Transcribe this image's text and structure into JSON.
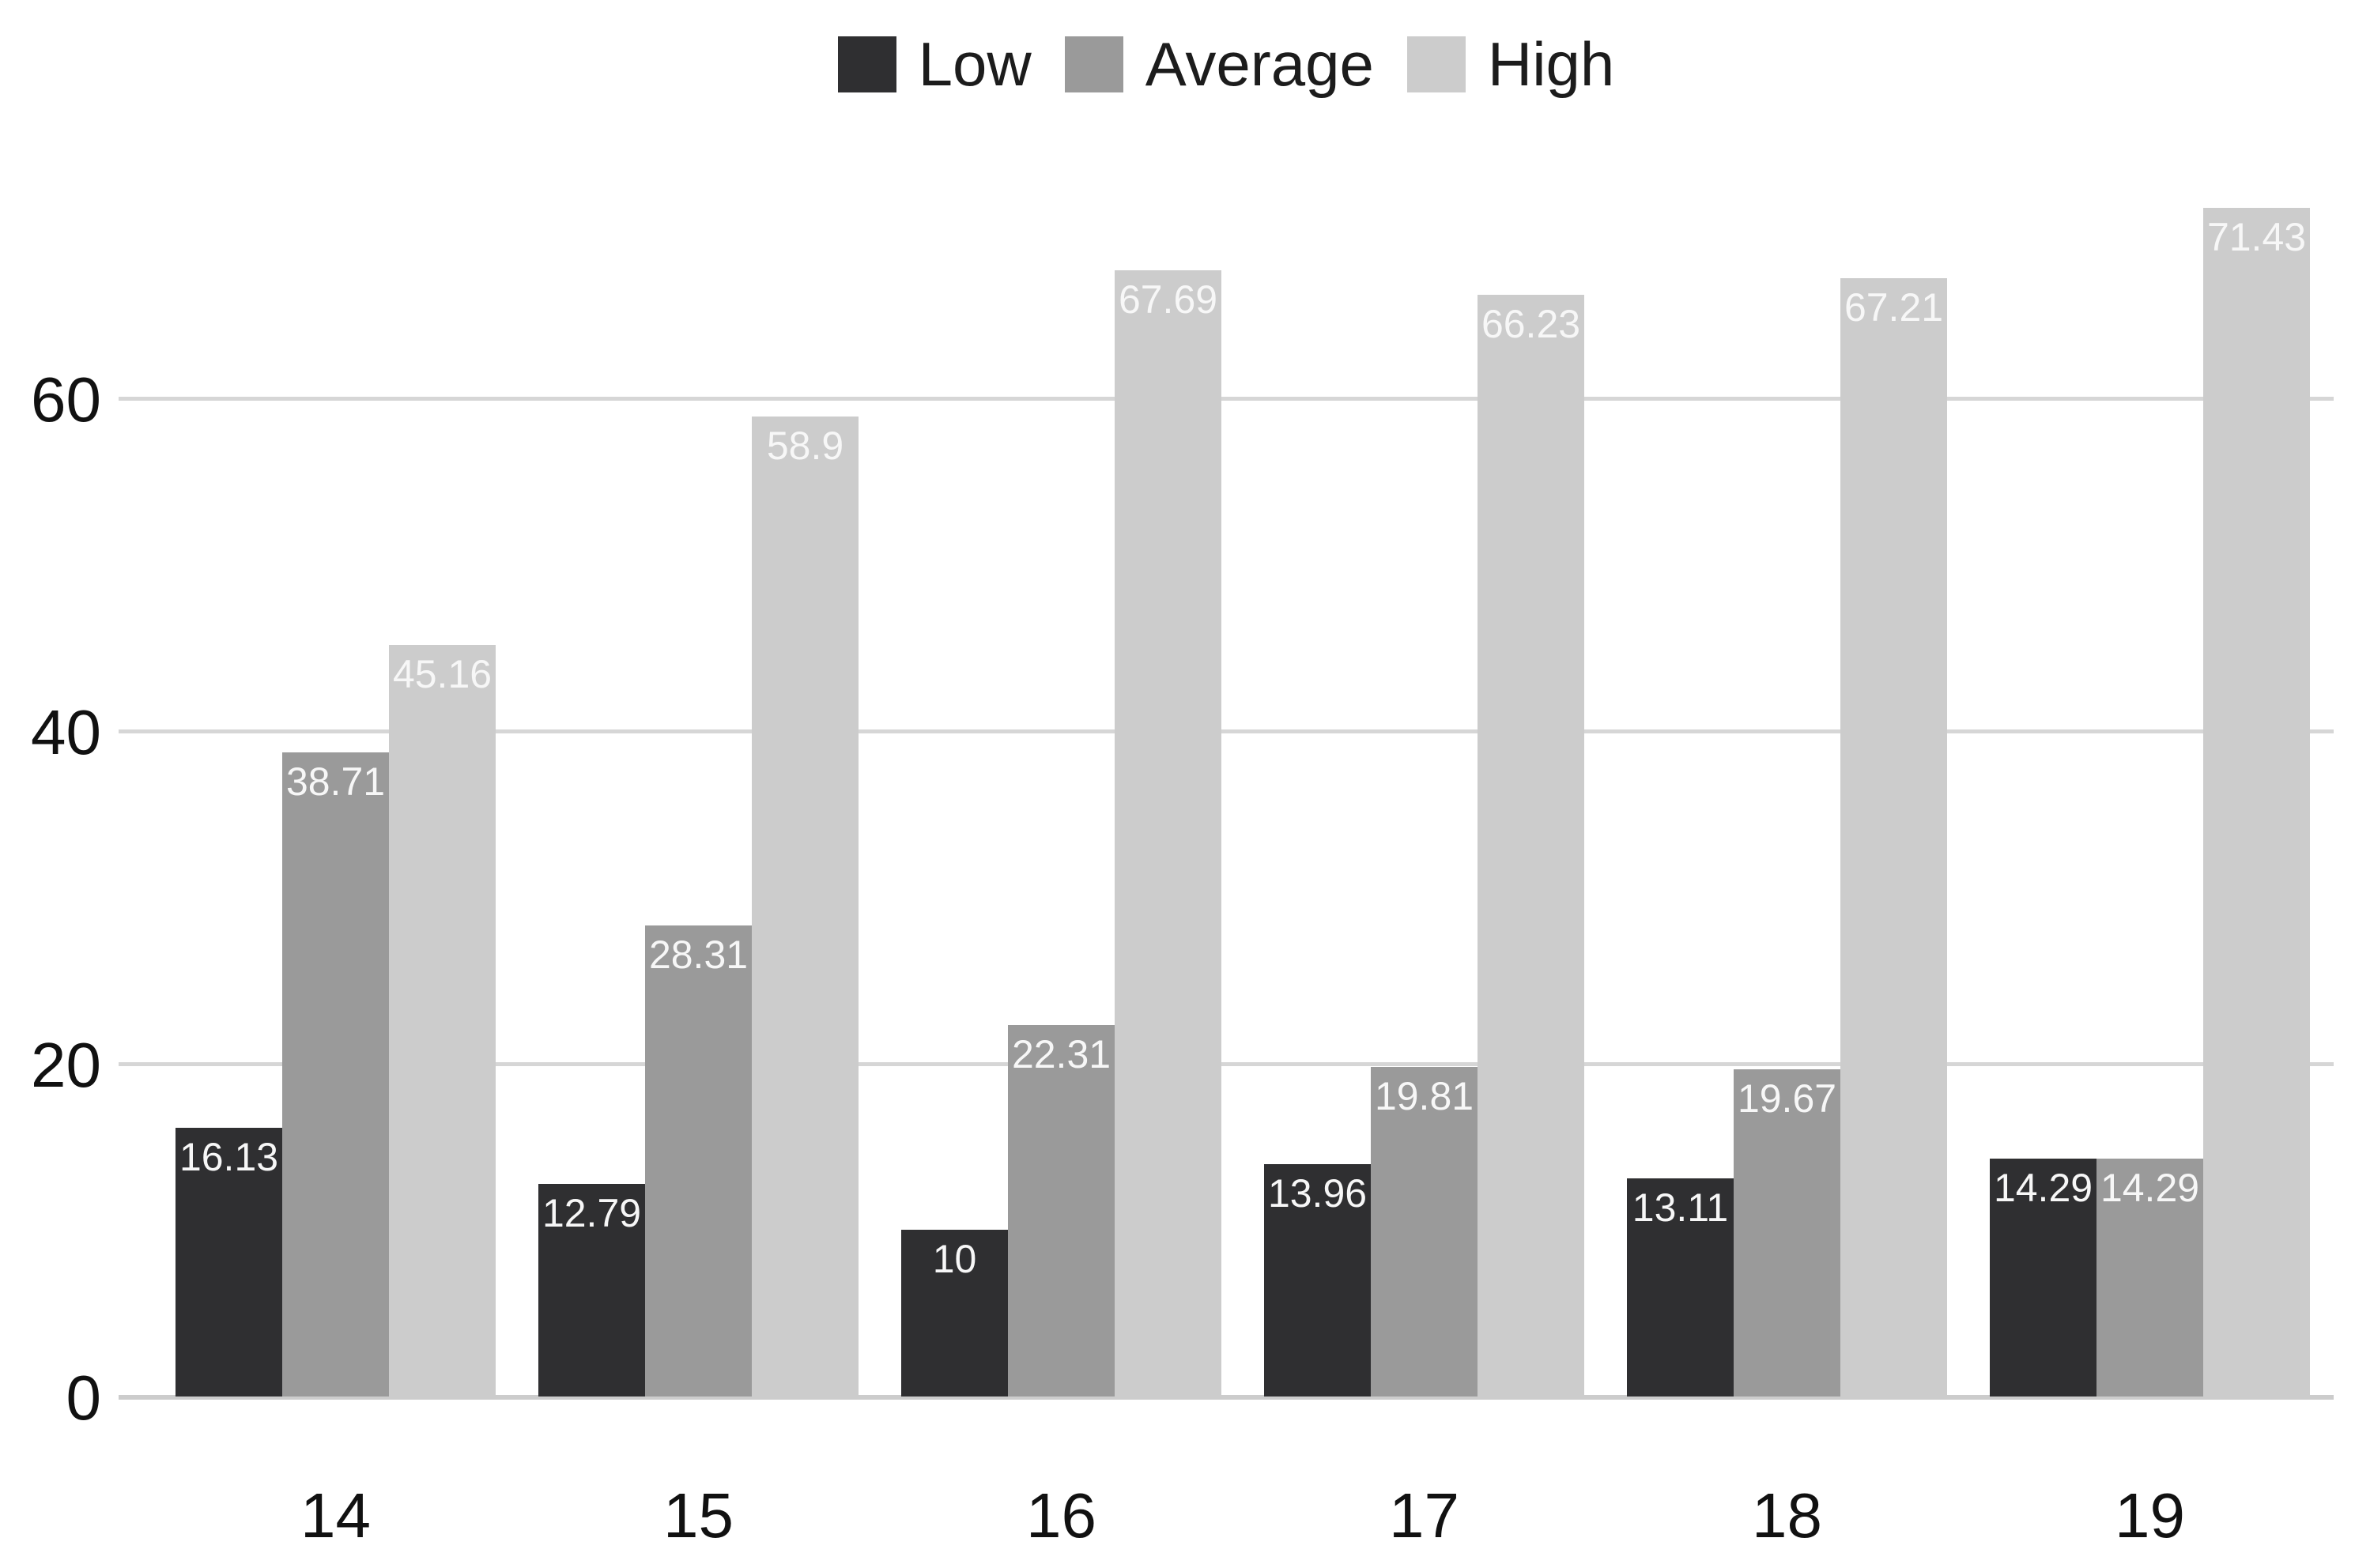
{
  "chart_data": {
    "type": "bar",
    "title": "",
    "categories": [
      "14",
      "15",
      "16",
      "17",
      "18",
      "19"
    ],
    "series": [
      {
        "name": "Low",
        "color": "#2f2f31",
        "values": [
          16.13,
          12.79,
          10,
          13.96,
          13.11,
          14.29
        ]
      },
      {
        "name": "Average",
        "color": "#9a9a9a",
        "values": [
          38.71,
          28.31,
          22.31,
          19.81,
          19.67,
          14.29
        ]
      },
      {
        "name": "High",
        "color": "#cccccc",
        "values": [
          45.16,
          58.9,
          67.69,
          66.23,
          67.21,
          71.43
        ]
      }
    ],
    "xlabel": "",
    "ylabel": "",
    "y_axis": {
      "min": 0,
      "max": 76,
      "ticks": [
        0,
        20,
        40,
        60
      ]
    },
    "legend_position": "top-center",
    "grid": "horizontal",
    "data_labels": "inside-top",
    "colors": {
      "background": "#ffffff",
      "gridline": "#d6d6d6",
      "baseline": "#cccccc",
      "axis_text": "#111111",
      "legend_text": "#1c1c1c",
      "data_label_text": "#f7f7f7"
    }
  }
}
